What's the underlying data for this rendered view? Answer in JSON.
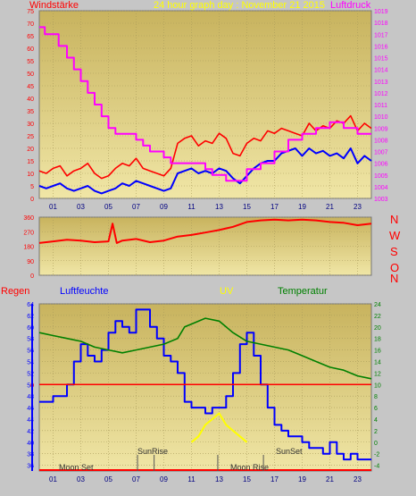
{
  "header": {
    "title": "24 hour graph day : November 21 2015",
    "left_label": "Windstärke",
    "right_label": "Luftdruck"
  },
  "bottom_header": {
    "regen": "Regen",
    "luftfeuchte": "Luftfeuchte",
    "uv": "UV",
    "temperatur": "Temperatur"
  },
  "compass": [
    "N",
    "W",
    "S",
    "O",
    "N"
  ],
  "annotations": {
    "moon_set": "Moon Set",
    "sunrise": "SunRise",
    "moon_rise": "Moon Rise",
    "sunset": "SunSet"
  },
  "colors": {
    "plot_bg_top": "#c8b35e",
    "plot_bg_bottom": "#f0e6a6",
    "wind_gust": "#ff0000",
    "wind_avg": "#0000ff",
    "pressure": "#ff00ff",
    "direction": "#ff0000",
    "humidity": "#0000ff",
    "temperature": "#008000",
    "uv": "#ffff00",
    "rain": "#ff0000"
  },
  "x_axis": {
    "tick_labels": [
      "01",
      "03",
      "05",
      "07",
      "09",
      "11",
      "13",
      "15",
      "17",
      "19",
      "21",
      "23"
    ]
  },
  "chart_data": [
    {
      "type": "line",
      "name": "wind-pressure",
      "xlim": [
        0,
        24
      ],
      "ylim": [
        0,
        75
      ],
      "y_ticks": [
        "0",
        "5",
        "10",
        "15",
        "20",
        "25",
        "30",
        "35",
        "40",
        "45",
        "50",
        "55",
        "60",
        "65",
        "70",
        "75"
      ],
      "y2lim": [
        1003,
        1019
      ],
      "y2_ticks": [
        "1003",
        "1004",
        "1005",
        "1006",
        "1007",
        "1008",
        "1009",
        "1010",
        "1011",
        "1012",
        "1013",
        "1014",
        "1015",
        "1016",
        "1017",
        "1018",
        "1019"
      ],
      "series": [
        {
          "label_key": "Windstärke (gust)",
          "x": [
            0,
            0.5,
            1,
            1.5,
            2,
            2.5,
            3,
            3.5,
            4,
            4.5,
            5,
            5.5,
            6,
            6.5,
            7,
            7.5,
            8,
            8.5,
            9,
            9.5,
            10,
            10.5,
            11,
            11.5,
            12,
            12.5,
            13,
            13.5,
            14,
            14.5,
            15,
            15.5,
            16,
            16.5,
            17,
            17.5,
            18,
            18.5,
            19,
            19.5,
            20,
            20.5,
            21,
            21.5,
            22,
            22.5,
            23,
            23.5,
            24
          ],
          "values": [
            11,
            10,
            12,
            13,
            9,
            11,
            12,
            14,
            10,
            8,
            9,
            12,
            14,
            13,
            16,
            12,
            11,
            10,
            9,
            12,
            22,
            24,
            25,
            21,
            23,
            22,
            26,
            24,
            18,
            17,
            22,
            24,
            23,
            27,
            26,
            28,
            27,
            26,
            25,
            30,
            27,
            29,
            28,
            31,
            30,
            33,
            27,
            30,
            28
          ]
        },
        {
          "label_key": "Windstärke (avg)",
          "x": [
            0,
            0.5,
            1,
            1.5,
            2,
            2.5,
            3,
            3.5,
            4,
            4.5,
            5,
            5.5,
            6,
            6.5,
            7,
            7.5,
            8,
            8.5,
            9,
            9.5,
            10,
            10.5,
            11,
            11.5,
            12,
            12.5,
            13,
            13.5,
            14,
            14.5,
            15,
            15.5,
            16,
            16.5,
            17,
            17.5,
            18,
            18.5,
            19,
            19.5,
            20,
            20.5,
            21,
            21.5,
            22,
            22.5,
            23,
            23.5,
            24
          ],
          "values": [
            5,
            4,
            5,
            6,
            4,
            3,
            4,
            5,
            3,
            2,
            3,
            4,
            6,
            5,
            7,
            6,
            5,
            4,
            3,
            4,
            10,
            11,
            12,
            10,
            11,
            10,
            12,
            11,
            8,
            6,
            9,
            12,
            14,
            15,
            15,
            18,
            19,
            20,
            17,
            20,
            18,
            19,
            17,
            18,
            16,
            20,
            14,
            17,
            15
          ]
        },
        {
          "label_key": "Luftdruck",
          "x": [
            0,
            0.4,
            1,
            1.4,
            2,
            2.5,
            3,
            3.5,
            4,
            4.5,
            5,
            5.5,
            6,
            6.5,
            7,
            7.5,
            8,
            8.5,
            9,
            9.5,
            10,
            11,
            12,
            12.5,
            13,
            13.5,
            14,
            15,
            16,
            17,
            18,
            19,
            20,
            21,
            22,
            23,
            24
          ],
          "values": [
            1017.6,
            1017,
            1017,
            1016,
            1015,
            1014,
            1013,
            1012,
            1011,
            1010,
            1009,
            1008.5,
            1008.5,
            1008.5,
            1008,
            1007.5,
            1007,
            1007,
            1006.5,
            1006,
            1006,
            1006,
            1005.5,
            1005,
            1005,
            1004.5,
            1004.5,
            1005.5,
            1006,
            1007,
            1008,
            1008.5,
            1009,
            1009.5,
            1009,
            1008.5,
            1008.5
          ]
        }
      ]
    },
    {
      "type": "line",
      "name": "wind-direction",
      "xlim": [
        0,
        24
      ],
      "ylim": [
        0,
        360
      ],
      "y_ticks": [
        "0",
        "90",
        "180",
        "270",
        "360"
      ],
      "series": [
        {
          "label_key": "direction",
          "x": [
            0,
            1,
            2,
            3,
            4,
            5,
            5.3,
            5.6,
            6,
            7,
            8,
            9,
            10,
            11,
            12,
            13,
            14,
            15,
            16,
            17,
            18,
            19,
            20,
            21,
            22,
            23,
            24
          ],
          "values": [
            200,
            210,
            220,
            215,
            205,
            210,
            320,
            200,
            215,
            225,
            205,
            215,
            240,
            250,
            265,
            280,
            300,
            330,
            340,
            345,
            340,
            345,
            340,
            330,
            325,
            310,
            320
          ]
        }
      ]
    },
    {
      "type": "line",
      "name": "humidity-temperature-uv",
      "xlim": [
        0,
        24
      ],
      "ylim": [
        35,
        64
      ],
      "y_ticks": [
        "36",
        "38",
        "40",
        "42",
        "44",
        "46",
        "48",
        "50",
        "52",
        "54",
        "56",
        "58",
        "60",
        "62",
        "64"
      ],
      "y2lim": [
        -5,
        24
      ],
      "y2_ticks": [
        "-4",
        "-2",
        "0",
        "2",
        "4",
        "6",
        "8",
        "10",
        "12",
        "14",
        "16",
        "18",
        "20",
        "22",
        "24"
      ],
      "rain_axis_tick": "0",
      "series": [
        {
          "label_key": "Luftfeuchte",
          "x": [
            0,
            0.5,
            1,
            1.5,
            2,
            2.5,
            3,
            3.5,
            4,
            4.5,
            5,
            5.5,
            6,
            6.5,
            7,
            7.5,
            8,
            8.5,
            9,
            9.5,
            10,
            10.5,
            11,
            11.5,
            12,
            12.5,
            13,
            13.5,
            14,
            14.5,
            15,
            15.5,
            16,
            16.5,
            17,
            17.5,
            18,
            18.5,
            19,
            19.5,
            20,
            20.5,
            21,
            21.5,
            22,
            22.5,
            23,
            23.5,
            24
          ],
          "values": [
            47,
            47,
            48,
            48,
            50,
            54,
            57,
            55,
            54,
            56,
            59,
            61,
            60,
            59,
            63,
            63,
            60,
            58,
            55,
            54,
            52,
            47,
            46,
            46,
            45,
            46,
            46,
            48,
            52,
            57,
            59,
            55,
            50,
            46,
            43,
            42,
            41,
            41,
            40,
            39,
            39,
            38,
            40,
            38,
            37,
            38,
            37,
            37,
            37
          ]
        },
        {
          "label_key": "Temperatur",
          "x": [
            0,
            1,
            2,
            3,
            4,
            5,
            6,
            7,
            8,
            9,
            10,
            10.5,
            11,
            12,
            13,
            13.5,
            14,
            15,
            16,
            17,
            18,
            19,
            20,
            21,
            22,
            23,
            24
          ],
          "values": [
            19,
            18.5,
            18,
            17.5,
            16.5,
            16,
            15.5,
            16,
            16.5,
            17,
            18,
            20,
            20.5,
            21.5,
            21,
            20,
            19,
            17.5,
            17,
            16.5,
            16,
            15,
            14,
            13,
            12.5,
            11.5,
            11
          ]
        },
        {
          "label_key": "UV",
          "x": [
            11,
            11.5,
            12,
            12.5,
            13,
            13.5,
            14,
            14.5,
            15
          ],
          "values": [
            0,
            1,
            3,
            4,
            5,
            3,
            2,
            1,
            0
          ]
        }
      ]
    }
  ]
}
